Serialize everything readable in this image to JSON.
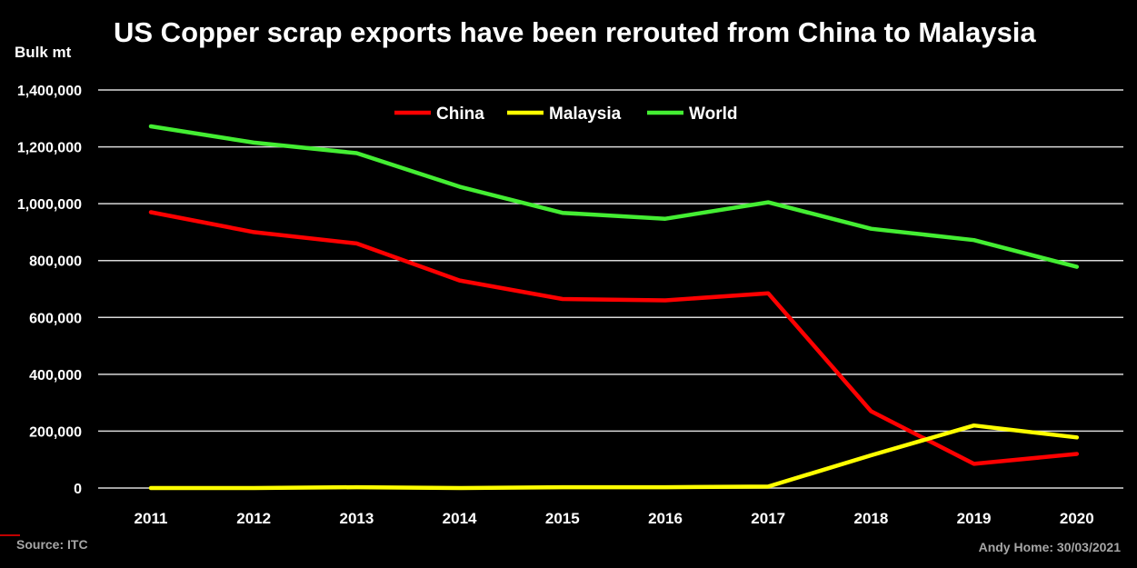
{
  "title": "US Copper scrap exports have been rerouted from China to Malaysia",
  "source": "Source: ITC",
  "credit": "Andy Home: 30/03/2021",
  "chart_data": {
    "type": "line",
    "title": "US Copper scrap exports have been rerouted from China to Malaysia",
    "xlabel": "",
    "ylabel": "Bulk mt",
    "x": [
      "2011",
      "2012",
      "2013",
      "2014",
      "2015",
      "2016",
      "2017",
      "2018",
      "2019",
      "2020"
    ],
    "ylim": [
      0,
      1400000
    ],
    "yticks": [
      0,
      200000,
      400000,
      600000,
      800000,
      1000000,
      1200000,
      1400000
    ],
    "ytick_labels": [
      "0",
      "200,000",
      "400,000",
      "600,000",
      "800,000",
      "1,000,000",
      "1,200,000",
      "1,400,000"
    ],
    "grid": true,
    "legend_position": "top-center",
    "series": [
      {
        "name": "China",
        "color": "#ff0000",
        "values": [
          970000,
          900000,
          860000,
          730000,
          665000,
          660000,
          685000,
          270000,
          85000,
          120000
        ]
      },
      {
        "name": "Malaysia",
        "color": "#ffff00",
        "values": [
          0,
          0,
          3000,
          0,
          3000,
          3000,
          5000,
          115000,
          220000,
          178000
        ]
      },
      {
        "name": "World",
        "color": "#44ee33",
        "values": [
          1272000,
          1215000,
          1178000,
          1060000,
          968000,
          947000,
          1005000,
          912000,
          872000,
          778000
        ]
      }
    ]
  }
}
